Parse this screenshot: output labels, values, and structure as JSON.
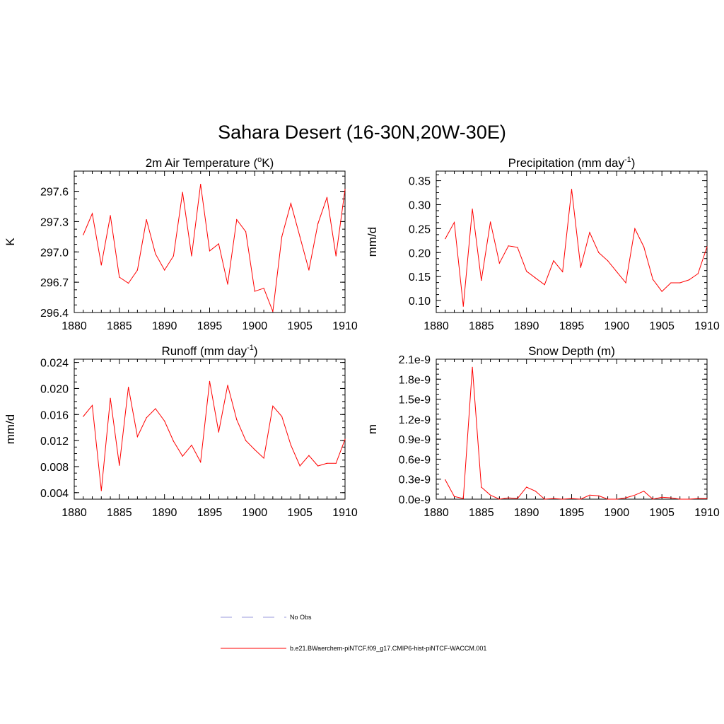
{
  "figure": {
    "title": "Sahara Desert (16-30N,20W-30E)"
  },
  "legend": {
    "entries": [
      {
        "label": "No Obs",
        "style": "dashed",
        "color": "#9999dd"
      },
      {
        "label": "b.e21.BWaerchem-piNTCF.f09_g17.CMIP6-hist-piNTCF-WACCM.001",
        "style": "solid",
        "color": "#ff0000"
      }
    ]
  },
  "chart_data": [
    {
      "type": "line",
      "title": "2m Air Temperature (°K)",
      "title_parts": {
        "pre": "2m Air Temperature (",
        "sup": "o",
        "post": "K)"
      },
      "ylabel": "K",
      "xlim": [
        1880,
        1910
      ],
      "ylim": [
        296.4,
        297.8
      ],
      "xticks": [
        1880,
        1885,
        1890,
        1895,
        1900,
        1905,
        1910
      ],
      "yticks": [
        "296.4",
        "296.7",
        "297.0",
        "297.3",
        "297.6"
      ],
      "yticks_values": [
        296.4,
        296.7,
        297.0,
        297.3,
        297.6
      ],
      "x": [
        1881,
        1882,
        1883,
        1884,
        1885,
        1886,
        1887,
        1888,
        1889,
        1890,
        1891,
        1892,
        1893,
        1894,
        1895,
        1896,
        1897,
        1898,
        1899,
        1900,
        1901,
        1902,
        1903,
        1904,
        1905,
        1906,
        1907,
        1908,
        1909,
        1910
      ],
      "series": [
        {
          "name": "b.e21.BWaerchem-piNTCF.f09_g17.CMIP6-hist-piNTCF-WACCM.001",
          "color": "#ff0000",
          "values": [
            297.17,
            297.38,
            296.87,
            297.36,
            296.75,
            296.69,
            296.82,
            297.32,
            296.98,
            296.82,
            296.96,
            297.59,
            296.96,
            297.67,
            297.01,
            297.08,
            296.68,
            297.32,
            297.2,
            296.61,
            296.64,
            296.41,
            297.15,
            297.48,
            297.15,
            296.82,
            297.28,
            297.54,
            296.96,
            297.62
          ]
        }
      ]
    },
    {
      "type": "line",
      "title": "Precipitation (mm day-1)",
      "title_parts": {
        "pre": "Precipitation (mm day",
        "sup": "-1",
        "post": ")"
      },
      "ylabel": "mm/d",
      "xlim": [
        1880,
        1910
      ],
      "ylim": [
        0.075,
        0.37
      ],
      "xticks": [
        1880,
        1885,
        1890,
        1895,
        1900,
        1905,
        1910
      ],
      "yticks": [
        "0.10",
        "0.15",
        "0.20",
        "0.25",
        "0.30",
        "0.35"
      ],
      "yticks_values": [
        0.1,
        0.15,
        0.2,
        0.25,
        0.3,
        0.35
      ],
      "x": [
        1881,
        1882,
        1883,
        1884,
        1885,
        1886,
        1887,
        1888,
        1889,
        1890,
        1891,
        1892,
        1893,
        1894,
        1895,
        1896,
        1897,
        1898,
        1899,
        1900,
        1901,
        1902,
        1903,
        1904,
        1905,
        1906,
        1907,
        1908,
        1909,
        1910
      ],
      "series": [
        {
          "name": "b.e21.BWaerchem-piNTCF.f09_g17.CMIP6-hist-piNTCF-WACCM.001",
          "color": "#ff0000",
          "values": [
            0.229,
            0.263,
            0.088,
            0.291,
            0.142,
            0.264,
            0.178,
            0.214,
            0.211,
            0.161,
            0.147,
            0.133,
            0.183,
            0.16,
            0.332,
            0.169,
            0.242,
            0.2,
            0.183,
            0.16,
            0.137,
            0.25,
            0.212,
            0.144,
            0.119,
            0.137,
            0.137,
            0.143,
            0.156,
            0.212
          ]
        }
      ]
    },
    {
      "type": "line",
      "title": "Runoff (mm day-1)",
      "title_parts": {
        "pre": "Runoff (mm day",
        "sup": "-1",
        "post": ")"
      },
      "ylabel": "mm/d",
      "xlim": [
        1880,
        1910
      ],
      "ylim": [
        0.003,
        0.0245
      ],
      "xticks": [
        1880,
        1885,
        1890,
        1895,
        1900,
        1905,
        1910
      ],
      "yticks": [
        "0.004",
        "0.008",
        "0.012",
        "0.016",
        "0.020",
        "0.024"
      ],
      "yticks_values": [
        0.004,
        0.008,
        0.012,
        0.016,
        0.02,
        0.024
      ],
      "x": [
        1881,
        1882,
        1883,
        1884,
        1885,
        1886,
        1887,
        1888,
        1889,
        1890,
        1891,
        1892,
        1893,
        1894,
        1895,
        1896,
        1897,
        1898,
        1899,
        1900,
        1901,
        1902,
        1903,
        1904,
        1905,
        1906,
        1907,
        1908,
        1909,
        1910
      ],
      "series": [
        {
          "name": "b.e21.BWaerchem-piNTCF.f09_g17.CMIP6-hist-piNTCF-WACCM.001",
          "color": "#ff0000",
          "values": [
            0.0157,
            0.0174,
            0.0043,
            0.0185,
            0.0082,
            0.0202,
            0.0126,
            0.0155,
            0.0169,
            0.015,
            0.0119,
            0.0096,
            0.0113,
            0.0087,
            0.0211,
            0.0133,
            0.0205,
            0.0152,
            0.012,
            0.0106,
            0.0093,
            0.0173,
            0.0157,
            0.0113,
            0.0081,
            0.0097,
            0.0081,
            0.0085,
            0.0085,
            0.0122
          ]
        }
      ]
    },
    {
      "type": "line",
      "title": "Snow Depth (m)",
      "title_parts": {
        "pre": "Snow Depth (m)",
        "sup": "",
        "post": ""
      },
      "ylabel": "m",
      "xlim": [
        1880,
        1910
      ],
      "ylim": [
        0.0,
        2.1e-09
      ],
      "xticks": [
        1880,
        1885,
        1890,
        1895,
        1900,
        1905,
        1910
      ],
      "yticks": [
        "0.0e-9",
        "0.3e-9",
        "0.6e-9",
        "0.9e-9",
        "1.2e-9",
        "1.5e-9",
        "1.8e-9",
        "2.1e-9"
      ],
      "yticks_values": [
        0.0,
        3e-10,
        6e-10,
        9e-10,
        1.2e-09,
        1.5e-09,
        1.8e-09,
        2.1e-09
      ],
      "x": [
        1881,
        1882,
        1883,
        1884,
        1885,
        1886,
        1887,
        1888,
        1889,
        1890,
        1891,
        1892,
        1893,
        1894,
        1895,
        1896,
        1897,
        1898,
        1899,
        1900,
        1901,
        1902,
        1903,
        1904,
        1905,
        1906,
        1907,
        1908,
        1909,
        1910
      ],
      "series": [
        {
          "name": "b.e21.BWaerchem-piNTCF.f09_g17.CMIP6-hist-piNTCF-WACCM.001",
          "color": "#ff0000",
          "values": [
            2.9e-10,
            4e-11,
            1e-11,
            1.98e-09,
            1.8e-10,
            6e-11,
            0.0,
            2e-11,
            1e-11,
            1.8e-10,
            1.2e-10,
            0.0,
            1e-11,
            0.0,
            1e-11,
            0.0,
            6e-11,
            5e-11,
            0.0,
            0.0,
            2e-11,
            6e-11,
            1.2e-10,
            0.0,
            3e-11,
            2e-11,
            0.0,
            0.0,
            1e-11,
            1e-11
          ]
        }
      ]
    }
  ]
}
